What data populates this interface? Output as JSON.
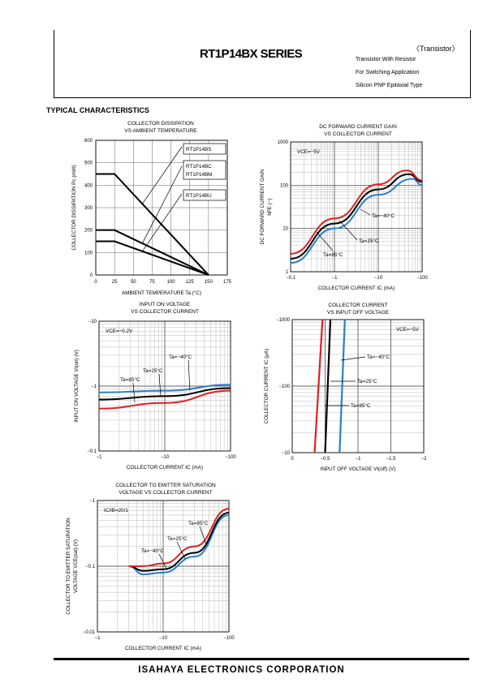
{
  "header": {
    "series": "RT1P14BX SERIES",
    "category": "〈Transistor〉",
    "lines": [
      "Transistor With Resistor",
      "For Switching Application",
      "Silicon PNP Epitaxial Type"
    ]
  },
  "section_title": "TYPICAL CHARACTERISTICS",
  "footer": "ISAHAYA ELECTRONICS CORPORATION",
  "chart_data": [
    {
      "type": "line",
      "title": "COLLECTOR DISSIPATION\nVS AMBIENT TEMPERATURE",
      "xlabel": "AMBIENT TEMPERATURE Ta (°C)",
      "ylabel": "COLLECTOR DISSIPATION Pc (mW)",
      "xlim": [
        0,
        175
      ],
      "ylim": [
        0,
        600
      ],
      "xticks": [
        "0",
        "25",
        "50",
        "75",
        "100",
        "125",
        "150",
        "175"
      ],
      "yticks": [
        "0",
        "100",
        "200",
        "300",
        "400",
        "500",
        "600"
      ],
      "series": [
        {
          "name": "RT1P14BS",
          "x": [
            0,
            25,
            150
          ],
          "y": [
            450,
            450,
            0
          ]
        },
        {
          "name": "RT1P14BC\nRT1P14BM",
          "x": [
            0,
            25,
            150
          ],
          "y": [
            200,
            200,
            0
          ]
        },
        {
          "name": "RT1P14BU",
          "x": [
            0,
            25,
            150
          ],
          "y": [
            150,
            150,
            0
          ]
        }
      ]
    },
    {
      "type": "line",
      "title": "DC FORWARD CURRENT GAIN\nVS COLLECTOR CURRENT",
      "xlabel": "COLLECTOR CURRENT  IC (mA)",
      "ylabel": "DC FORWARD CURRENT GAIN\nhFE (−)",
      "annotation": "VCE=−5V",
      "xlim": [
        -0.1,
        -100
      ],
      "ylim": [
        1,
        1000
      ],
      "xscale": "log",
      "yscale": "log",
      "xticks": [
        "−0.1",
        "−1",
        "−10",
        "−100"
      ],
      "yticks": [
        "1",
        "10",
        "100",
        "1000"
      ],
      "series": [
        {
          "name": "Ta=−40°C",
          "color": "#2a7fc7",
          "x": [
            -0.1,
            -1,
            -10,
            -60,
            -100
          ],
          "y": [
            1.6,
            10,
            60,
            140,
            100
          ]
        },
        {
          "name": "Ta=25°C",
          "color": "#000000",
          "x": [
            -0.1,
            -1,
            -10,
            -50,
            -100
          ],
          "y": [
            2,
            13,
            80,
            180,
            120
          ]
        },
        {
          "name": "Ta=85°C",
          "color": "#e02020",
          "x": [
            -0.1,
            -1,
            -10,
            -45,
            -100
          ],
          "y": [
            2.6,
            17,
            105,
            220,
            130
          ]
        }
      ]
    },
    {
      "type": "line",
      "title": "INPUT ON VOLTAGE\nVS COLLECTOR CURRENT",
      "xlabel": "COLLECTOR CURRENT  IC (mA)",
      "ylabel": "INPUT ON VOLTAGE VI(on) (V)",
      "annotation": "VCE=−0.2V",
      "xlim": [
        -1,
        -100
      ],
      "ylim": [
        -0.1,
        -10
      ],
      "xscale": "log",
      "yscale": "log",
      "xticks": [
        "−1",
        "−10",
        "−100"
      ],
      "yticks": [
        "−0.1",
        "−1",
        "−10"
      ],
      "series": [
        {
          "name": "Ta=−40°C",
          "color": "#2a7fc7",
          "x": [
            -1,
            -10,
            -100
          ],
          "y": [
            -0.8,
            -0.85,
            -1.05
          ]
        },
        {
          "name": "Ta=25°C",
          "color": "#000000",
          "x": [
            -1,
            -10,
            -100
          ],
          "y": [
            -0.62,
            -0.7,
            -0.93
          ]
        },
        {
          "name": "Ta=85°C",
          "color": "#e02020",
          "x": [
            -1,
            -10,
            -100
          ],
          "y": [
            -0.45,
            -0.55,
            -0.85
          ]
        }
      ]
    },
    {
      "type": "line",
      "title": "COLLECTOR CURRENT\nVS INPUT OFF VOLTAGE",
      "xlabel": "INPUT OFF VOLTAGE VI(off) (V)",
      "ylabel": "COLLECTOR CURRENT IC (μA)",
      "annotation": "VCE=−5V",
      "xlim": [
        0,
        -2
      ],
      "ylim": [
        -10,
        -1000
      ],
      "yscale": "log",
      "xticks": [
        "0",
        "−0.5",
        "−1",
        "−1.5",
        "−2"
      ],
      "yticks": [
        "−10",
        "−100",
        "−1000"
      ],
      "series": [
        {
          "name": "Ta=−40°C",
          "color": "#2a7fc7",
          "x": [
            -0.72,
            -0.8
          ],
          "y": [
            -10,
            -1000
          ]
        },
        {
          "name": "Ta=25°C",
          "color": "#000000",
          "x": [
            -0.5,
            -0.58
          ],
          "y": [
            -10,
            -1000
          ]
        },
        {
          "name": "Ta=85°C",
          "color": "#e02020",
          "x": [
            -0.34,
            -0.46
          ],
          "y": [
            -10,
            -1000
          ]
        }
      ]
    },
    {
      "type": "line",
      "title": "COLLECTOR TO EMITTER SATURATION\nVOLTAGE VS COLLECTOR CURRENT",
      "xlabel": "COLLECTOR CURRENT  IC (mA)",
      "ylabel": "COLLECTOR TO EMITTER SATURATION\nVOLTAGE VCE(sat) (V)",
      "annotation": "IC/IB=20/1",
      "xlim": [
        -1,
        -100
      ],
      "ylim": [
        -0.01,
        -1
      ],
      "xscale": "log",
      "yscale": "log",
      "xticks": [
        "−1",
        "−10",
        "−100"
      ],
      "yticks": [
        "−0.01",
        "−0.1",
        "−1"
      ],
      "series": [
        {
          "name": "Ta=−40°C",
          "color": "#2a7fc7",
          "x": [
            -3,
            -5,
            -10,
            -30,
            -100
          ],
          "y": [
            -0.1,
            -0.075,
            -0.08,
            -0.14,
            -0.6
          ]
        },
        {
          "name": "Ta=25°C",
          "color": "#000000",
          "x": [
            -3,
            -5,
            -10,
            -30,
            -100
          ],
          "y": [
            -0.1,
            -0.085,
            -0.09,
            -0.16,
            -0.65
          ]
        },
        {
          "name": "Ta=85°C",
          "color": "#e02020",
          "x": [
            -3,
            -5,
            -10,
            -30,
            -100
          ],
          "y": [
            -0.1,
            -0.1,
            -0.11,
            -0.2,
            -0.75
          ]
        }
      ]
    }
  ]
}
